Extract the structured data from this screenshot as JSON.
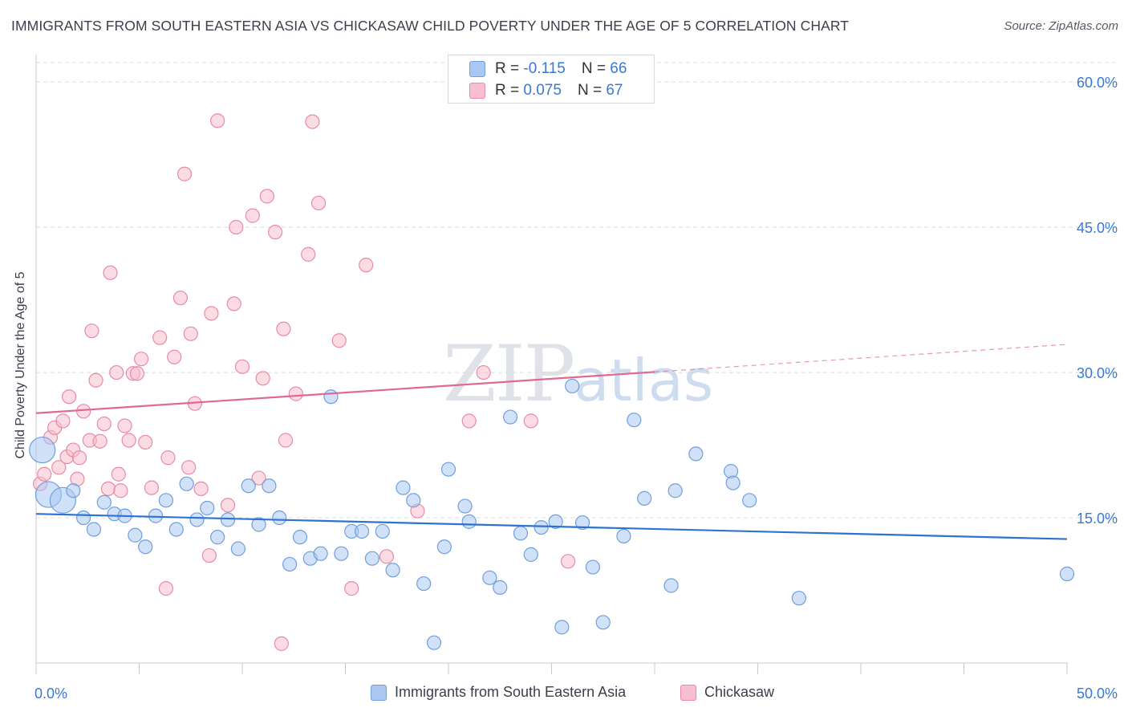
{
  "title": "IMMIGRANTS FROM SOUTH EASTERN ASIA VS CHICKASAW CHILD POVERTY UNDER THE AGE OF 5 CORRELATION CHART",
  "source": "Source: ZipAtlas.com",
  "watermark": {
    "part1": "ZIP",
    "part2": "atlas"
  },
  "legend": {
    "r_label": "R =",
    "n_label": "N =",
    "series": [
      {
        "r": "-0.115",
        "n": "66"
      },
      {
        "r": "0.075",
        "n": "67"
      }
    ]
  },
  "colors": {
    "blue_fill": "#aac8f2",
    "blue_stroke": "#6f9fde",
    "blue_line": "#2f72d2",
    "pink_fill": "#f7bfd0",
    "pink_stroke": "#e88aa6",
    "pink_line": "#e06a8f",
    "grid": "#dcdcdc",
    "tick_label": "#3a78d4"
  },
  "chart_data": {
    "type": "scatter",
    "title": "IMMIGRANTS FROM SOUTH EASTERN ASIA VS CHICKASAW CHILD POVERTY UNDER THE AGE OF 5 CORRELATION CHART",
    "xlabel": "",
    "ylabel": "Child Poverty Under the Age of 5",
    "xlim": [
      0,
      50
    ],
    "ylim": [
      0,
      62
    ],
    "x_tick_labels": [
      "0.0%",
      "50.0%"
    ],
    "y_ticks": [
      15,
      30,
      45,
      60
    ],
    "y_tick_labels": [
      "15.0%",
      "30.0%",
      "45.0%",
      "60.0%"
    ],
    "grid": true,
    "legend_placement": "top-center",
    "series": [
      {
        "name": "Immigrants from South Eastern Asia",
        "r": -0.115,
        "n": 66,
        "trend": {
          "x": [
            0,
            50
          ],
          "y": [
            15.4,
            12.8
          ],
          "solid_until": 50
        },
        "points": [
          {
            "x": 0.3,
            "y": 22.0,
            "big": 1
          },
          {
            "x": 0.6,
            "y": 17.4,
            "big": 1
          },
          {
            "x": 1.3,
            "y": 16.8,
            "big": 1
          },
          {
            "x": 1.8,
            "y": 17.8
          },
          {
            "x": 2.3,
            "y": 15.0
          },
          {
            "x": 2.8,
            "y": 13.8
          },
          {
            "x": 3.3,
            "y": 16.6
          },
          {
            "x": 3.8,
            "y": 15.4
          },
          {
            "x": 4.3,
            "y": 15.2
          },
          {
            "x": 4.8,
            "y": 13.2
          },
          {
            "x": 5.3,
            "y": 12.0
          },
          {
            "x": 5.8,
            "y": 15.2
          },
          {
            "x": 6.3,
            "y": 16.8
          },
          {
            "x": 6.8,
            "y": 13.8
          },
          {
            "x": 7.3,
            "y": 18.5
          },
          {
            "x": 7.8,
            "y": 14.8
          },
          {
            "x": 8.3,
            "y": 16.0
          },
          {
            "x": 8.8,
            "y": 13.0
          },
          {
            "x": 9.3,
            "y": 14.8
          },
          {
            "x": 9.8,
            "y": 11.8
          },
          {
            "x": 10.3,
            "y": 18.3
          },
          {
            "x": 10.8,
            "y": 14.3
          },
          {
            "x": 11.3,
            "y": 18.3
          },
          {
            "x": 11.8,
            "y": 15.0
          },
          {
            "x": 12.3,
            "y": 10.2
          },
          {
            "x": 12.8,
            "y": 13.0
          },
          {
            "x": 13.3,
            "y": 10.8
          },
          {
            "x": 13.8,
            "y": 11.3
          },
          {
            "x": 14.3,
            "y": 27.5
          },
          {
            "x": 14.8,
            "y": 11.3
          },
          {
            "x": 15.3,
            "y": 13.6
          },
          {
            "x": 15.8,
            "y": 13.6
          },
          {
            "x": 16.3,
            "y": 10.8
          },
          {
            "x": 16.8,
            "y": 13.6
          },
          {
            "x": 17.3,
            "y": 9.6
          },
          {
            "x": 17.8,
            "y": 18.1
          },
          {
            "x": 18.3,
            "y": 16.8
          },
          {
            "x": 18.8,
            "y": 8.2
          },
          {
            "x": 19.3,
            "y": 2.1
          },
          {
            "x": 19.8,
            "y": 12.0
          },
          {
            "x": 20.0,
            "y": 20.0
          },
          {
            "x": 20.8,
            "y": 16.2
          },
          {
            "x": 21.0,
            "y": 14.6
          },
          {
            "x": 22.0,
            "y": 8.8
          },
          {
            "x": 22.5,
            "y": 7.8
          },
          {
            "x": 23.0,
            "y": 25.4
          },
          {
            "x": 23.5,
            "y": 13.4
          },
          {
            "x": 24.0,
            "y": 11.2
          },
          {
            "x": 24.5,
            "y": 14.0
          },
          {
            "x": 25.2,
            "y": 14.6
          },
          {
            "x": 25.5,
            "y": 3.7
          },
          {
            "x": 26.0,
            "y": 28.6
          },
          {
            "x": 26.5,
            "y": 14.5
          },
          {
            "x": 27.0,
            "y": 9.9
          },
          {
            "x": 27.5,
            "y": 4.2
          },
          {
            "x": 28.5,
            "y": 13.1
          },
          {
            "x": 29.0,
            "y": 25.1
          },
          {
            "x": 29.5,
            "y": 17.0
          },
          {
            "x": 30.8,
            "y": 8.0
          },
          {
            "x": 31.0,
            "y": 17.8
          },
          {
            "x": 32.0,
            "y": 21.6
          },
          {
            "x": 33.7,
            "y": 19.8
          },
          {
            "x": 33.8,
            "y": 18.6
          },
          {
            "x": 34.6,
            "y": 16.8
          },
          {
            "x": 37.0,
            "y": 6.7
          },
          {
            "x": 50.0,
            "y": 9.2
          }
        ]
      },
      {
        "name": "Chickasaw",
        "r": 0.075,
        "n": 67,
        "trend": {
          "x": [
            0,
            50
          ],
          "y": [
            25.8,
            32.9
          ],
          "solid_until": 30
        },
        "points": [
          {
            "x": 0.2,
            "y": 18.5
          },
          {
            "x": 0.4,
            "y": 19.5
          },
          {
            "x": 0.7,
            "y": 23.3
          },
          {
            "x": 0.9,
            "y": 24.3
          },
          {
            "x": 1.1,
            "y": 20.2
          },
          {
            "x": 1.3,
            "y": 25.0
          },
          {
            "x": 1.5,
            "y": 21.3
          },
          {
            "x": 1.6,
            "y": 27.5
          },
          {
            "x": 1.8,
            "y": 22.0
          },
          {
            "x": 2.0,
            "y": 19.0
          },
          {
            "x": 2.1,
            "y": 21.2
          },
          {
            "x": 2.3,
            "y": 26.0
          },
          {
            "x": 2.6,
            "y": 23.0
          },
          {
            "x": 2.7,
            "y": 34.3
          },
          {
            "x": 2.9,
            "y": 29.2
          },
          {
            "x": 3.1,
            "y": 22.9
          },
          {
            "x": 3.3,
            "y": 24.7
          },
          {
            "x": 3.5,
            "y": 18.0
          },
          {
            "x": 3.6,
            "y": 40.3
          },
          {
            "x": 3.9,
            "y": 30.0
          },
          {
            "x": 4.0,
            "y": 19.5
          },
          {
            "x": 4.1,
            "y": 17.8
          },
          {
            "x": 4.3,
            "y": 24.5
          },
          {
            "x": 4.5,
            "y": 23.0
          },
          {
            "x": 4.7,
            "y": 29.9
          },
          {
            "x": 4.9,
            "y": 29.9
          },
          {
            "x": 5.1,
            "y": 31.4
          },
          {
            "x": 5.3,
            "y": 22.8
          },
          {
            "x": 5.6,
            "y": 18.1
          },
          {
            "x": 6.0,
            "y": 33.6
          },
          {
            "x": 6.3,
            "y": 7.7
          },
          {
            "x": 6.4,
            "y": 21.2
          },
          {
            "x": 6.7,
            "y": 31.6
          },
          {
            "x": 7.0,
            "y": 37.7
          },
          {
            "x": 7.2,
            "y": 50.5
          },
          {
            "x": 7.4,
            "y": 20.2
          },
          {
            "x": 7.5,
            "y": 34.0
          },
          {
            "x": 7.7,
            "y": 26.8
          },
          {
            "x": 8.0,
            "y": 18.0
          },
          {
            "x": 8.4,
            "y": 11.1
          },
          {
            "x": 8.5,
            "y": 36.1
          },
          {
            "x": 8.8,
            "y": 56.0
          },
          {
            "x": 9.3,
            "y": 16.3
          },
          {
            "x": 9.6,
            "y": 37.1
          },
          {
            "x": 9.7,
            "y": 45.0
          },
          {
            "x": 10.0,
            "y": 30.6
          },
          {
            "x": 10.5,
            "y": 46.2
          },
          {
            "x": 10.8,
            "y": 19.1
          },
          {
            "x": 11.0,
            "y": 29.4
          },
          {
            "x": 11.2,
            "y": 48.2
          },
          {
            "x": 11.6,
            "y": 44.5
          },
          {
            "x": 11.9,
            "y": 2.0
          },
          {
            "x": 12.0,
            "y": 34.5
          },
          {
            "x": 12.1,
            "y": 23.0
          },
          {
            "x": 12.6,
            "y": 27.8
          },
          {
            "x": 13.2,
            "y": 42.2
          },
          {
            "x": 13.4,
            "y": 55.9
          },
          {
            "x": 14.7,
            "y": 33.3
          },
          {
            "x": 15.3,
            "y": 7.7
          },
          {
            "x": 16.0,
            "y": 41.1
          },
          {
            "x": 17.0,
            "y": 11.0
          },
          {
            "x": 18.5,
            "y": 15.7
          },
          {
            "x": 21.0,
            "y": 25.0
          },
          {
            "x": 21.7,
            "y": 30.0
          },
          {
            "x": 24.0,
            "y": 25.0
          },
          {
            "x": 25.8,
            "y": 10.5
          },
          {
            "x": 13.7,
            "y": 47.5
          }
        ]
      }
    ]
  }
}
